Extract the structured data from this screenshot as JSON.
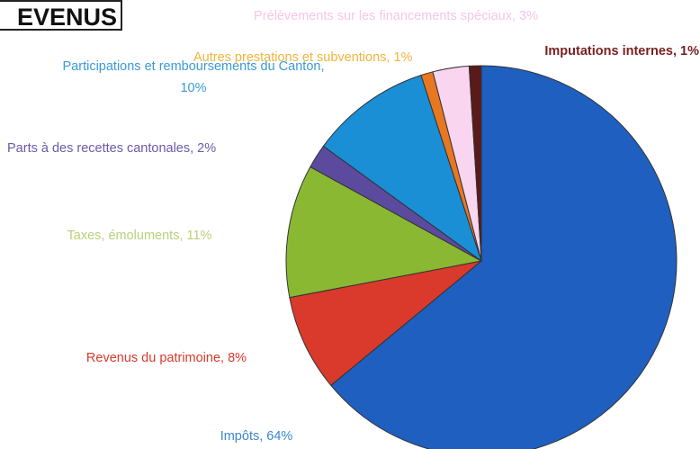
{
  "chart_data": {
    "type": "pie",
    "title": "EVENUS",
    "labels": [
      "Impôts, 64%",
      "Revenus du patrimoine, 8%",
      "Taxes, émoluments, 11%",
      "Parts à des recettes cantonales, 2%",
      "Participations et remboursements du Canton, 10%",
      "Autres prestations et subventions, 1%",
      "Prélèvements sur les financements spéciaux, 3%",
      "Imputations internes, 1%"
    ],
    "values": [
      64,
      8,
      11,
      2,
      10,
      1,
      3,
      1
    ],
    "colors": [
      "#1f5fbf",
      "#d93a2b",
      "#8ab833",
      "#5b4a9e",
      "#1a8fd6",
      "#e87722",
      "#f9d5ef",
      "#5a1a1a"
    ]
  }
}
